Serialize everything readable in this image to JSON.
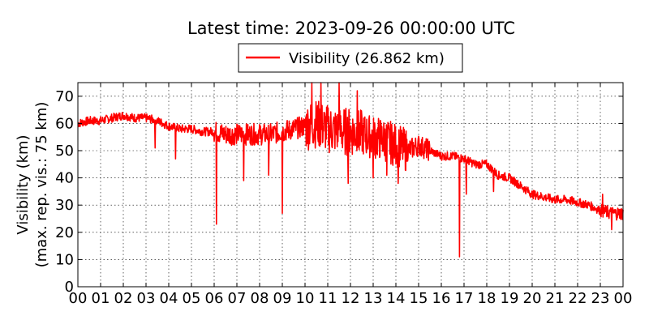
{
  "chart_data": {
    "type": "line",
    "title": "Latest time: 2023-09-26 00:00:00 UTC",
    "xlabel": "",
    "ylabel": [
      "Visibility (km)",
      "(max. rep. vis.: 75 km)"
    ],
    "xlim": [
      0,
      24
    ],
    "ylim": [
      0,
      75
    ],
    "grid": true,
    "legend_position": "top-center, above plot",
    "x_ticks": [
      "00",
      "01",
      "02",
      "03",
      "04",
      "05",
      "06",
      "07",
      "08",
      "09",
      "10",
      "11",
      "12",
      "13",
      "14",
      "15",
      "16",
      "17",
      "18",
      "19",
      "20",
      "21",
      "22",
      "23",
      "00"
    ],
    "y_ticks": [
      0,
      10,
      20,
      30,
      40,
      50,
      60,
      70
    ],
    "series": [
      {
        "name": "Visibility (26.862 km)",
        "color": "#ff0000",
        "x_hours": [
          0,
          0.5,
          1,
          1.5,
          2,
          2.5,
          3,
          3.5,
          4,
          4.5,
          5,
          5.5,
          6,
          6.5,
          7,
          7.5,
          8,
          8.5,
          9,
          9.5,
          10,
          10.5,
          11,
          11.5,
          12,
          12.5,
          13,
          13.5,
          14,
          14.5,
          15,
          15.5,
          16,
          16.5,
          17,
          17.5,
          18,
          18.5,
          19,
          19.5,
          20,
          20.5,
          21,
          21.5,
          22,
          22.5,
          23,
          23.5,
          24
        ],
        "visibility_km": [
          60,
          61,
          61,
          62,
          63,
          62,
          62,
          61,
          59,
          58,
          58,
          57,
          57,
          56,
          56,
          56,
          56,
          56,
          57,
          58,
          59,
          60,
          58,
          57,
          57,
          56,
          55,
          54,
          52,
          50,
          52,
          50,
          48,
          48,
          47,
          45,
          45,
          41,
          40,
          37,
          34,
          33,
          32,
          32,
          31,
          30,
          28,
          27,
          27
        ]
      }
    ],
    "spikes": [
      {
        "x_hours": 3.4,
        "min_km": 51
      },
      {
        "x_hours": 4.3,
        "min_km": 47
      },
      {
        "x_hours": 6.1,
        "min_km": 23
      },
      {
        "x_hours": 7.3,
        "min_km": 39
      },
      {
        "x_hours": 8.4,
        "min_km": 41
      },
      {
        "x_hours": 9.0,
        "min_km": 27
      },
      {
        "x_hours": 10.3,
        "max_km": 75
      },
      {
        "x_hours": 10.7,
        "max_km": 75
      },
      {
        "x_hours": 11.5,
        "max_km": 75
      },
      {
        "x_hours": 11.9,
        "min_km": 38
      },
      {
        "x_hours": 12.3,
        "max_km": 72
      },
      {
        "x_hours": 13.0,
        "min_km": 40
      },
      {
        "x_hours": 13.6,
        "min_km": 41
      },
      {
        "x_hours": 14.1,
        "min_km": 38
      },
      {
        "x_hours": 16.8,
        "min_km": 11
      },
      {
        "x_hours": 17.1,
        "min_km": 34
      },
      {
        "x_hours": 18.3,
        "min_km": 35
      },
      {
        "x_hours": 23.1,
        "max_km": 34
      },
      {
        "x_hours": 23.5,
        "min_km": 21
      }
    ]
  }
}
